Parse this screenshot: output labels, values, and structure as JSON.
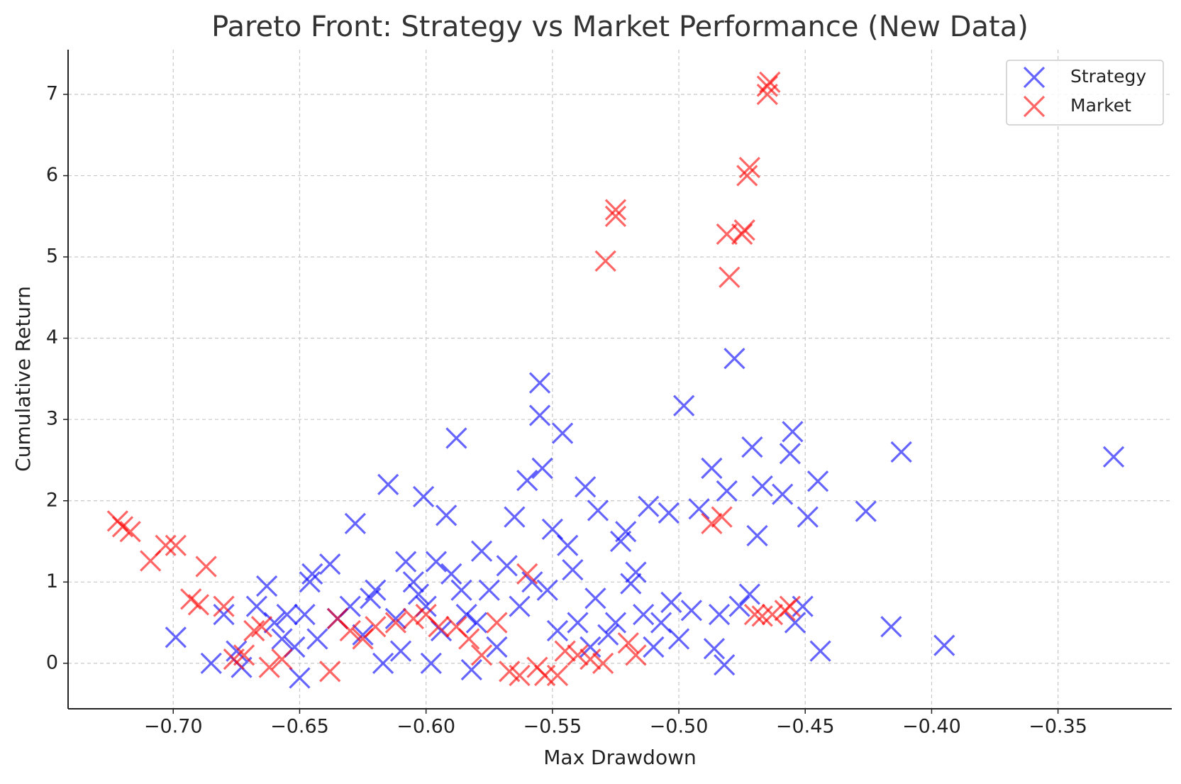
{
  "chart_data": {
    "type": "scatter",
    "title": "Pareto Front: Strategy vs Market Performance (New Data)",
    "xlabel": "Max Drawdown",
    "ylabel": "Cumulative Return",
    "xlim": [
      -0.7416,
      -0.305
    ],
    "ylim": [
      -0.56,
      7.55
    ],
    "xticks": [
      {
        "value": -0.7,
        "label": "−0.70"
      },
      {
        "value": -0.65,
        "label": "−0.65"
      },
      {
        "value": -0.6,
        "label": "−0.60"
      },
      {
        "value": -0.55,
        "label": "−0.55"
      },
      {
        "value": -0.5,
        "label": "−0.50"
      },
      {
        "value": -0.45,
        "label": "−0.45"
      },
      {
        "value": -0.4,
        "label": "−0.40"
      },
      {
        "value": -0.35,
        "label": "−0.35"
      }
    ],
    "yticks": [
      0,
      1,
      2,
      3,
      4,
      5,
      6,
      7
    ],
    "grid": true,
    "legend": "upper right",
    "series": [
      {
        "name": "Strategy",
        "color": "#0000ff",
        "x": [
          -0.699,
          -0.685,
          -0.68,
          -0.675,
          -0.673,
          -0.667,
          -0.663,
          -0.66,
          -0.657,
          -0.655,
          -0.652,
          -0.65,
          -0.648,
          -0.646,
          -0.645,
          -0.643,
          -0.638,
          -0.635,
          -0.63,
          -0.628,
          -0.625,
          -0.622,
          -0.62,
          -0.617,
          -0.615,
          -0.612,
          -0.61,
          -0.608,
          -0.605,
          -0.603,
          -0.601,
          -0.6,
          -0.598,
          -0.596,
          -0.594,
          -0.592,
          -0.59,
          -0.588,
          -0.586,
          -0.584,
          -0.582,
          -0.58,
          -0.578,
          -0.575,
          -0.572,
          -0.568,
          -0.565,
          -0.563,
          -0.56,
          -0.558,
          -0.555,
          -0.555,
          -0.554,
          -0.552,
          -0.55,
          -0.548,
          -0.546,
          -0.544,
          -0.542,
          -0.54,
          -0.537,
          -0.535,
          -0.533,
          -0.532,
          -0.528,
          -0.525,
          -0.523,
          -0.521,
          -0.519,
          -0.517,
          -0.514,
          -0.512,
          -0.51,
          -0.507,
          -0.504,
          -0.503,
          -0.5,
          -0.498,
          -0.495,
          -0.492,
          -0.487,
          -0.486,
          -0.484,
          -0.482,
          -0.481,
          -0.478,
          -0.476,
          -0.472,
          -0.471,
          -0.469,
          -0.467,
          -0.459,
          -0.456,
          -0.455,
          -0.454,
          -0.451,
          -0.449,
          -0.445,
          -0.444,
          -0.426,
          -0.416,
          -0.412,
          -0.395,
          -0.328
        ],
        "values": [
          0.32,
          0.0,
          0.6,
          0.15,
          -0.05,
          0.7,
          0.95,
          0.5,
          0.3,
          0.6,
          0.2,
          -0.18,
          0.6,
          1.0,
          1.1,
          0.3,
          1.22,
          0.55,
          0.7,
          1.72,
          0.35,
          0.8,
          0.9,
          0.0,
          2.2,
          0.55,
          0.15,
          1.25,
          1.0,
          0.85,
          2.05,
          0.7,
          0.0,
          1.25,
          0.4,
          1.82,
          1.1,
          2.77,
          0.9,
          0.6,
          -0.08,
          0.5,
          1.38,
          0.9,
          0.2,
          1.2,
          1.8,
          0.7,
          2.25,
          1.0,
          3.45,
          3.05,
          2.4,
          0.9,
          1.65,
          0.4,
          2.83,
          1.45,
          1.15,
          0.5,
          2.17,
          0.2,
          0.8,
          1.88,
          0.35,
          0.5,
          1.5,
          1.62,
          0.98,
          1.12,
          0.6,
          1.93,
          0.2,
          0.5,
          1.85,
          0.75,
          0.3,
          3.17,
          0.65,
          1.9,
          2.4,
          0.18,
          0.6,
          -0.02,
          2.12,
          3.75,
          0.7,
          0.85,
          2.66,
          1.57,
          2.18,
          2.08,
          2.58,
          2.85,
          0.5,
          0.7,
          1.8,
          2.24,
          0.15,
          1.87,
          0.45,
          2.6,
          0.22,
          2.54
        ]
      },
      {
        "name": "Market",
        "color": "#ff0000",
        "x": [
          -0.722,
          -0.72,
          -0.717,
          -0.709,
          -0.703,
          -0.699,
          -0.693,
          -0.69,
          -0.687,
          -0.68,
          -0.676,
          -0.672,
          -0.668,
          -0.665,
          -0.662,
          -0.657,
          -0.638,
          -0.635,
          -0.63,
          -0.625,
          -0.62,
          -0.612,
          -0.605,
          -0.6,
          -0.595,
          -0.588,
          -0.583,
          -0.578,
          -0.572,
          -0.567,
          -0.563,
          -0.56,
          -0.556,
          -0.553,
          -0.548,
          -0.545,
          -0.54,
          -0.535,
          -0.53,
          -0.529,
          -0.525,
          -0.525,
          -0.52,
          -0.517,
          -0.487,
          -0.483,
          -0.481,
          -0.48,
          -0.475,
          -0.474,
          -0.473,
          -0.472,
          -0.47,
          -0.467,
          -0.465,
          -0.465,
          -0.464,
          -0.463,
          -0.458,
          -0.456
        ],
        "values": [
          1.75,
          1.68,
          1.62,
          1.26,
          1.45,
          1.45,
          0.79,
          0.72,
          1.19,
          0.7,
          0.05,
          0.1,
          0.4,
          0.45,
          -0.05,
          0.05,
          -0.1,
          0.55,
          0.4,
          0.3,
          0.45,
          0.5,
          0.55,
          0.6,
          0.45,
          0.45,
          0.3,
          0.1,
          0.5,
          -0.1,
          -0.15,
          1.1,
          -0.05,
          -0.15,
          -0.15,
          0.15,
          0.1,
          0.05,
          0.0,
          4.95,
          5.5,
          5.58,
          0.25,
          0.1,
          1.72,
          1.8,
          5.28,
          4.75,
          5.28,
          5.33,
          6.0,
          6.1,
          0.6,
          0.58,
          7.1,
          7.0,
          7.15,
          0.6,
          0.65,
          0.7
        ]
      }
    ]
  }
}
